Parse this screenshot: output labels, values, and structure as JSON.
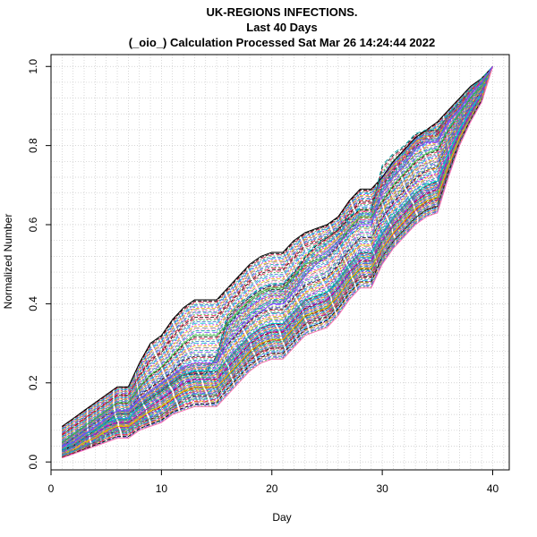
{
  "chart_data": {
    "type": "line",
    "title": [
      "UK-REGIONS INFECTIONS.",
      "Last 40 Days",
      "(_oio_) Calculation Processed  Sat Mar 26 14:24:44 2022"
    ],
    "xlabel": "Day",
    "ylabel": "Normalized Number",
    "xlim": [
      0,
      41.5
    ],
    "ylim": [
      -0.02,
      1.03
    ],
    "xticks": [
      0,
      10,
      20,
      30,
      40
    ],
    "yticks": [
      0.0,
      0.2,
      0.4,
      0.6,
      0.8,
      1.0
    ],
    "grid": true,
    "legend": "none",
    "x": [
      1,
      2,
      3,
      4,
      5,
      6,
      7,
      8,
      9,
      10,
      11,
      12,
      13,
      14,
      15,
      16,
      17,
      18,
      19,
      20,
      21,
      22,
      23,
      24,
      25,
      26,
      27,
      28,
      29,
      30,
      31,
      32,
      33,
      34,
      35,
      36,
      37,
      38,
      39,
      40
    ],
    "series": [
      {
        "values": [
          0.09,
          0.11,
          0.13,
          0.15,
          0.17,
          0.19,
          0.19,
          0.25,
          0.3,
          0.32,
          0.36,
          0.39,
          0.41,
          0.41,
          0.41,
          0.44,
          0.47,
          0.5,
          0.52,
          0.53,
          0.53,
          0.56,
          0.58,
          0.59,
          0.6,
          0.62,
          0.66,
          0.69,
          0.69,
          0.72,
          0.76,
          0.79,
          0.82,
          0.84,
          0.86,
          0.89,
          0.92,
          0.95,
          0.97,
          1.0
        ]
      },
      {
        "values": [
          0.07,
          0.09,
          0.11,
          0.13,
          0.15,
          0.17,
          0.17,
          0.22,
          0.26,
          0.28,
          0.32,
          0.35,
          0.37,
          0.37,
          0.37,
          0.4,
          0.43,
          0.46,
          0.48,
          0.49,
          0.49,
          0.52,
          0.55,
          0.56,
          0.57,
          0.59,
          0.63,
          0.66,
          0.66,
          0.7,
          0.74,
          0.77,
          0.8,
          0.82,
          0.83,
          0.87,
          0.9,
          0.94,
          0.96,
          1.0
        ]
      },
      {
        "values": [
          0.05,
          0.07,
          0.09,
          0.11,
          0.13,
          0.15,
          0.15,
          0.19,
          0.22,
          0.24,
          0.27,
          0.3,
          0.32,
          0.32,
          0.32,
          0.35,
          0.38,
          0.41,
          0.43,
          0.44,
          0.44,
          0.47,
          0.5,
          0.51,
          0.52,
          0.55,
          0.59,
          0.62,
          0.62,
          0.66,
          0.7,
          0.73,
          0.76,
          0.78,
          0.79,
          0.84,
          0.88,
          0.92,
          0.95,
          1.0
        ]
      },
      {
        "values": [
          0.04,
          0.06,
          0.08,
          0.1,
          0.12,
          0.13,
          0.13,
          0.17,
          0.19,
          0.21,
          0.23,
          0.26,
          0.27,
          0.27,
          0.27,
          0.3,
          0.33,
          0.36,
          0.38,
          0.39,
          0.39,
          0.42,
          0.45,
          0.46,
          0.47,
          0.5,
          0.54,
          0.57,
          0.57,
          0.62,
          0.66,
          0.69,
          0.72,
          0.74,
          0.75,
          0.81,
          0.86,
          0.9,
          0.94,
          1.0
        ]
      },
      {
        "values": [
          0.03,
          0.05,
          0.07,
          0.08,
          0.1,
          0.11,
          0.11,
          0.14,
          0.16,
          0.18,
          0.2,
          0.22,
          0.23,
          0.23,
          0.23,
          0.26,
          0.29,
          0.32,
          0.34,
          0.35,
          0.35,
          0.38,
          0.41,
          0.42,
          0.43,
          0.46,
          0.5,
          0.53,
          0.53,
          0.58,
          0.62,
          0.65,
          0.68,
          0.7,
          0.71,
          0.78,
          0.84,
          0.89,
          0.93,
          1.0
        ]
      },
      {
        "values": [
          0.03,
          0.04,
          0.06,
          0.07,
          0.09,
          0.1,
          0.1,
          0.12,
          0.14,
          0.16,
          0.18,
          0.2,
          0.21,
          0.21,
          0.21,
          0.24,
          0.27,
          0.3,
          0.32,
          0.33,
          0.33,
          0.36,
          0.39,
          0.4,
          0.41,
          0.44,
          0.48,
          0.51,
          0.51,
          0.56,
          0.6,
          0.63,
          0.66,
          0.68,
          0.69,
          0.77,
          0.83,
          0.88,
          0.93,
          1.0
        ]
      },
      {
        "values": [
          0.02,
          0.03,
          0.05,
          0.06,
          0.08,
          0.09,
          0.09,
          0.11,
          0.13,
          0.14,
          0.16,
          0.18,
          0.19,
          0.19,
          0.19,
          0.22,
          0.25,
          0.28,
          0.3,
          0.31,
          0.31,
          0.34,
          0.37,
          0.38,
          0.39,
          0.42,
          0.46,
          0.49,
          0.49,
          0.54,
          0.58,
          0.61,
          0.64,
          0.66,
          0.67,
          0.75,
          0.82,
          0.87,
          0.92,
          1.0
        ]
      },
      {
        "values": [
          0.02,
          0.03,
          0.04,
          0.05,
          0.07,
          0.08,
          0.08,
          0.1,
          0.11,
          0.12,
          0.14,
          0.16,
          0.17,
          0.17,
          0.17,
          0.2,
          0.23,
          0.26,
          0.28,
          0.29,
          0.29,
          0.32,
          0.35,
          0.36,
          0.37,
          0.4,
          0.44,
          0.47,
          0.47,
          0.52,
          0.56,
          0.59,
          0.62,
          0.64,
          0.65,
          0.74,
          0.81,
          0.87,
          0.92,
          1.0
        ]
      },
      {
        "values": [
          0.01,
          0.02,
          0.03,
          0.04,
          0.05,
          0.06,
          0.06,
          0.08,
          0.09,
          0.1,
          0.12,
          0.13,
          0.14,
          0.14,
          0.14,
          0.17,
          0.2,
          0.23,
          0.25,
          0.26,
          0.26,
          0.29,
          0.32,
          0.33,
          0.34,
          0.37,
          0.41,
          0.44,
          0.44,
          0.5,
          0.54,
          0.57,
          0.6,
          0.62,
          0.63,
          0.72,
          0.8,
          0.86,
          0.91,
          1.0
        ]
      },
      {
        "values": [
          0.03,
          0.04,
          0.06,
          0.08,
          0.1,
          0.12,
          0.12,
          0.14,
          0.16,
          0.18,
          0.2,
          0.22,
          0.22,
          0.22,
          0.27,
          0.37,
          0.4,
          0.42,
          0.44,
          0.45,
          0.45,
          0.48,
          0.52,
          0.55,
          0.57,
          0.59,
          0.62,
          0.64,
          0.64,
          0.75,
          0.78,
          0.8,
          0.83,
          0.84,
          0.84,
          0.88,
          0.91,
          0.94,
          0.97,
          1.0
        ]
      },
      {
        "values": [
          0.04,
          0.05,
          0.07,
          0.09,
          0.11,
          0.13,
          0.13,
          0.16,
          0.18,
          0.2,
          0.22,
          0.24,
          0.25,
          0.25,
          0.25,
          0.3,
          0.33,
          0.36,
          0.38,
          0.4,
          0.4,
          0.43,
          0.47,
          0.5,
          0.52,
          0.55,
          0.58,
          0.6,
          0.6,
          0.68,
          0.72,
          0.75,
          0.79,
          0.81,
          0.81,
          0.86,
          0.89,
          0.93,
          0.96,
          1.0
        ]
      }
    ]
  }
}
